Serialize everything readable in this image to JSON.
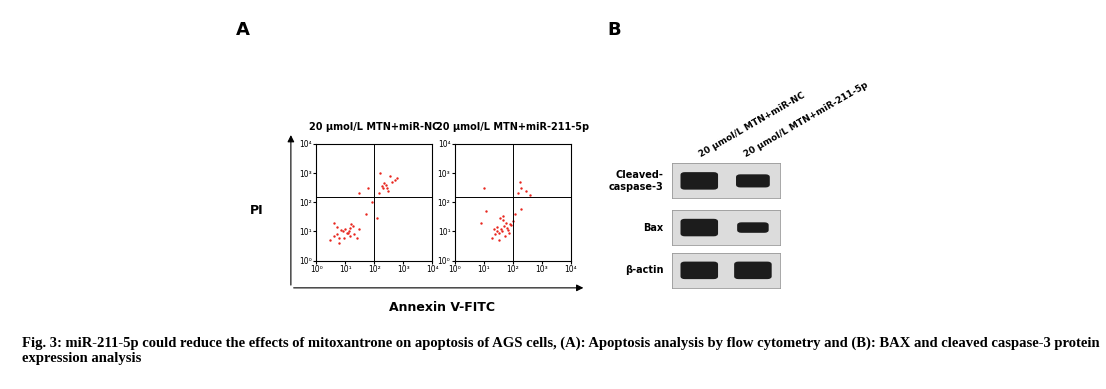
{
  "panel_labels": [
    "A",
    "B"
  ],
  "caption": "Fig. 3: miR-211-5p could reduce the effects of mitoxantrone on apoptosis of AGS cells, (A): Apoptosis analysis by flow cytometry and (B): BAX and cleaved caspase-3 protein expression analysis",
  "shared_axis_labels": {
    "x": "Annexin V-FITC",
    "y": "PI"
  },
  "chart_data": [
    {
      "type": "scatter",
      "title": "20 μmol/L MTN+miR-NC",
      "log": true,
      "color": "#e8261e",
      "marker": "o",
      "xlim": [
        1,
        10000
      ],
      "ylim": [
        1,
        10000
      ],
      "xticks": [
        {
          "value": 1,
          "label": "10⁰"
        },
        {
          "value": 10,
          "label": "10¹"
        },
        {
          "value": 100,
          "label": "10²"
        },
        {
          "value": 1000,
          "label": "10³"
        },
        {
          "value": 10000,
          "label": "10⁴"
        }
      ],
      "yticks": [
        {
          "value": 1,
          "label": "10⁰"
        },
        {
          "value": 10,
          "label": "10¹"
        },
        {
          "value": 100,
          "label": "10²"
        },
        {
          "value": 1000,
          "label": "10³"
        },
        {
          "value": 10000,
          "label": "10⁴"
        }
      ],
      "gates": {
        "x": 100,
        "y": 150
      },
      "x": [
        3,
        4,
        5,
        6,
        8,
        10,
        12,
        15,
        18,
        20,
        7,
        5,
        9,
        11,
        14,
        4,
        6,
        13,
        16,
        25,
        30,
        150,
        200,
        250,
        300,
        400,
        500,
        180,
        350,
        220,
        600,
        280,
        160,
        50,
        80,
        30,
        120,
        60
      ],
      "y": [
        5,
        7,
        8,
        6,
        10,
        12,
        9,
        7,
        15,
        8,
        11,
        14,
        6,
        9,
        13,
        20,
        4,
        10,
        18,
        6,
        12,
        200,
        300,
        400,
        250,
        500,
        600,
        350,
        800,
        450,
        700,
        300,
        1000,
        40,
        100,
        200,
        30,
        300
      ]
    },
    {
      "type": "scatter",
      "title": "20 μmol/L MTN+miR-211-5p",
      "log": true,
      "color": "#e8261e",
      "marker": "o",
      "xlim": [
        1,
        10000
      ],
      "ylim": [
        1,
        10000
      ],
      "xticks": [
        {
          "value": 1,
          "label": "10⁰"
        },
        {
          "value": 10,
          "label": "10¹"
        },
        {
          "value": 100,
          "label": "10²"
        },
        {
          "value": 1000,
          "label": "10³"
        },
        {
          "value": 10000,
          "label": "10⁴"
        }
      ],
      "yticks": [
        {
          "value": 1,
          "label": "10⁰"
        },
        {
          "value": 10,
          "label": "10¹"
        },
        {
          "value": 100,
          "label": "10²"
        },
        {
          "value": 1000,
          "label": "10³"
        },
        {
          "value": 10000,
          "label": "10⁴"
        }
      ],
      "gates": {
        "x": 100,
        "y": 150
      },
      "x": [
        20,
        25,
        30,
        40,
        50,
        35,
        60,
        70,
        45,
        28,
        55,
        80,
        38,
        65,
        90,
        42,
        100,
        33,
        48,
        75,
        22,
        150,
        200,
        300,
        180,
        400,
        8,
        12,
        120,
        10,
        200
      ],
      "y": [
        6,
        8,
        10,
        12,
        15,
        9,
        20,
        11,
        25,
        14,
        7,
        18,
        30,
        13,
        16,
        10,
        22,
        5,
        35,
        9,
        12,
        200,
        300,
        250,
        500,
        180,
        20,
        50,
        40,
        300,
        60
      ]
    }
  ],
  "western_blot": {
    "lanes": [
      "20 μmol/L MTN+miR-NC",
      "20 μmol/L MTN+miR-211-5p"
    ],
    "bands": [
      {
        "name": "Cleaved-\ncaspase-3",
        "values": [
          1.0,
          0.75
        ]
      },
      {
        "name": "Bax",
        "values": [
          1.0,
          0.6
        ]
      },
      {
        "name": "β-actin",
        "values": [
          1.0,
          1.0
        ]
      }
    ]
  }
}
